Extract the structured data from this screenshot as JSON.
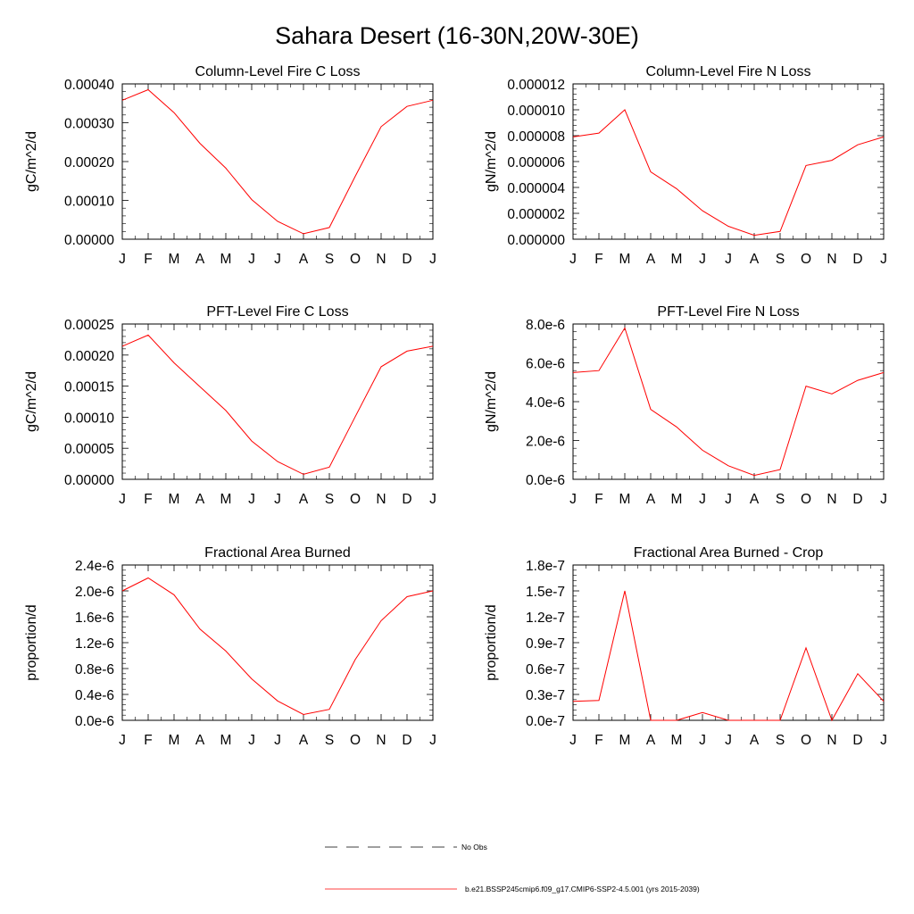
{
  "figure_title": "Sahara Desert (16-30N,20W-30E)",
  "legend": {
    "obs_label": "No Obs",
    "model_label": "b.e21.BSSP245cmip6.f09_g17.CMIP6-SSP2-4.5.001 (yrs 2015-2039)",
    "model_color": "#ff0000",
    "obs_color": "#000000"
  },
  "chart_data": [
    {
      "type": "line",
      "title": "Column-Level Fire C Loss",
      "ylabel": "gC/m^2/d",
      "xlabel": "",
      "categories": [
        "J",
        "F",
        "M",
        "A",
        "M",
        "J",
        "J",
        "A",
        "S",
        "O",
        "N",
        "D",
        "J"
      ],
      "ylim": [
        0,
        0.0004
      ],
      "yticks": [
        "0.00000",
        "0.00010",
        "0.00020",
        "0.00030",
        "0.00040"
      ],
      "series": [
        {
          "values": [
            0.000358,
            0.000385,
            0.000326,
            0.000247,
            0.000183,
            0.000102,
            4.6e-05,
            1.4e-05,
            3e-05,
            0.000162,
            0.00029,
            0.000342,
            0.000358
          ]
        }
      ]
    },
    {
      "type": "line",
      "title": "Column-Level Fire N Loss",
      "ylabel": "gN/m^2/d",
      "xlabel": "",
      "categories": [
        "J",
        "F",
        "M",
        "A",
        "M",
        "J",
        "J",
        "A",
        "S",
        "O",
        "N",
        "D",
        "J"
      ],
      "ylim": [
        0,
        1.2e-05
      ],
      "yticks": [
        "0.000000",
        "0.000002",
        "0.000004",
        "0.000006",
        "0.000008",
        "0.000010",
        "0.000012"
      ],
      "series": [
        {
          "values": [
            7.9e-06,
            8.2e-06,
            1e-05,
            5.2e-06,
            3.9e-06,
            2.2e-06,
            1e-06,
            3e-07,
            6e-07,
            5.7e-06,
            6.1e-06,
            7.3e-06,
            7.9e-06
          ]
        }
      ]
    },
    {
      "type": "line",
      "title": "PFT-Level Fire C Loss",
      "ylabel": "gC/m^2/d",
      "xlabel": "",
      "categories": [
        "J",
        "F",
        "M",
        "A",
        "M",
        "J",
        "J",
        "A",
        "S",
        "O",
        "N",
        "D",
        "J"
      ],
      "ylim": [
        0,
        0.00028
      ],
      "yticks": [
        "0.00000",
        "0.00005",
        "0.00010",
        "0.00015",
        "0.00020",
        "0.00025"
      ],
      "series": [
        {
          "values": [
            0.00024,
            0.00026,
            0.00021,
            0.000167,
            0.000124,
            6.9e-05,
            3.2e-05,
            9e-06,
            2.2e-05,
            0.000113,
            0.000203,
            0.000231,
            0.00024
          ]
        }
      ]
    },
    {
      "type": "line",
      "title": "PFT-Level Fire N Loss",
      "ylabel": "gN/m^2/d",
      "xlabel": "",
      "categories": [
        "J",
        "F",
        "M",
        "A",
        "M",
        "J",
        "J",
        "A",
        "S",
        "O",
        "N",
        "D",
        "J"
      ],
      "ylim": [
        0,
        8e-06
      ],
      "yticks": [
        "0.0e-6",
        "2.0e-6",
        "4.0e-6",
        "6.0e-6",
        "8.0e-6"
      ],
      "series": [
        {
          "values": [
            5.5e-06,
            5.6e-06,
            7.8e-06,
            3.6e-06,
            2.7e-06,
            1.5e-06,
            7e-07,
            2e-07,
            5e-07,
            4.8e-06,
            4.4e-06,
            5.1e-06,
            5.5e-06
          ]
        }
      ]
    },
    {
      "type": "line",
      "title": "Fractional Area Burned",
      "ylabel": "proportion/d",
      "xlabel": "",
      "categories": [
        "J",
        "F",
        "M",
        "A",
        "M",
        "J",
        "J",
        "A",
        "S",
        "O",
        "N",
        "D",
        "J"
      ],
      "ylim": [
        0,
        2.4e-06
      ],
      "yticks": [
        "0.0e-6",
        "0.4e-6",
        "0.8e-6",
        "1.2e-6",
        "1.6e-6",
        "2.0e-6",
        "2.4e-6"
      ],
      "series": [
        {
          "values": [
            2e-06,
            2.2e-06,
            1.94e-06,
            1.41e-06,
            1.07e-06,
            6.4e-07,
            3e-07,
            9e-08,
            1.7e-07,
            9.4e-07,
            1.54e-06,
            1.91e-06,
            2e-06
          ]
        }
      ]
    },
    {
      "type": "line",
      "title": "Fractional Area Burned - Crop",
      "ylabel": "proportion/d",
      "xlabel": "",
      "categories": [
        "J",
        "F",
        "M",
        "A",
        "M",
        "J",
        "J",
        "A",
        "S",
        "O",
        "N",
        "D",
        "J"
      ],
      "ylim": [
        0,
        1.8e-07
      ],
      "yticks": [
        "0.0e-7",
        "0.3e-7",
        "0.6e-7",
        "0.9e-7",
        "1.2e-7",
        "1.5e-7",
        "1.8e-7"
      ],
      "series": [
        {
          "values": [
            2.2e-08,
            2.3e-08,
            1.5e-07,
            0.0,
            0.0,
            9e-09,
            0.0,
            0.0,
            0.0,
            8.4e-08,
            0.0,
            5.4e-08,
            2.2e-08
          ]
        }
      ]
    }
  ]
}
